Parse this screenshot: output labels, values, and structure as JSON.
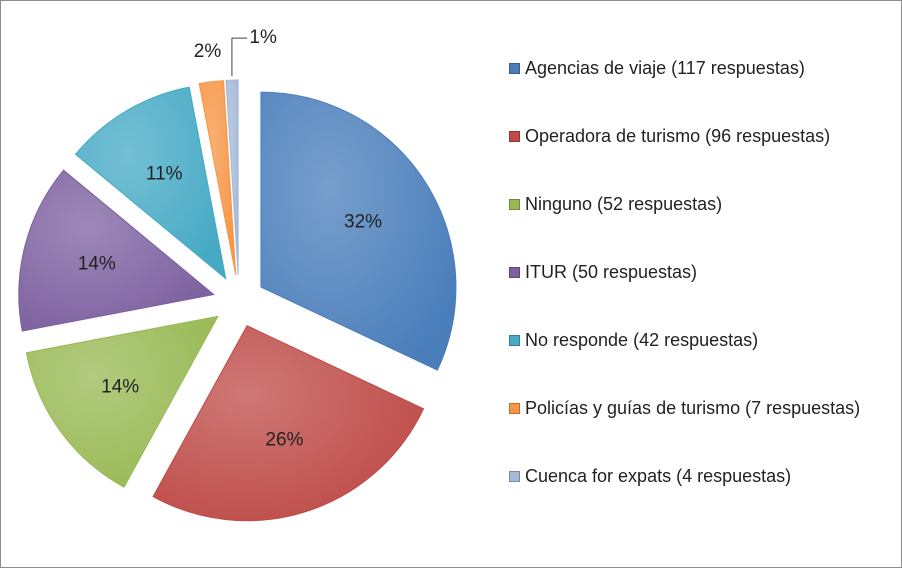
{
  "chart_data": {
    "type": "pie",
    "categories": [
      "Agencias de viaje (117 respuestas)",
      "Operadora de turismo (96 respuestas)",
      "Ninguno (52 respuestas)",
      "ITUR (50 respuestas)",
      "No responde (42 respuestas)",
      "Policías y guías de turismo (7 respuestas)",
      "Cuenca for expats (4 respuestas)"
    ],
    "values": [
      32,
      26,
      14,
      14,
      11,
      2,
      1
    ],
    "value_labels": [
      "32%",
      "26%",
      "14%",
      "14%",
      "11%",
      "2%",
      "1%"
    ],
    "colors": [
      "#4a7ebb",
      "#be4b48",
      "#98b954",
      "#7d60a0",
      "#46aac5",
      "#f79646",
      "#a5b9d8"
    ],
    "legend": "right"
  }
}
